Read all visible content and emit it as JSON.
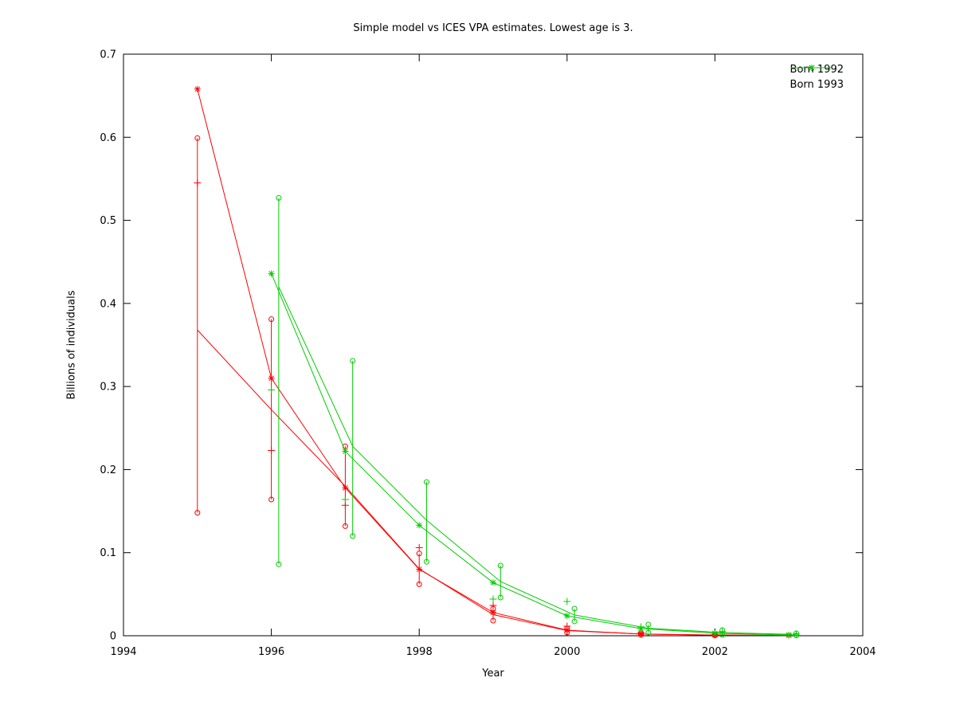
{
  "title": "Simple model vs ICES VPA estimates. Lowest age is 3.",
  "axes": {
    "x": {
      "label": "Year",
      "min": 1994,
      "max": 2004,
      "ticks": [
        {
          "v": 1994,
          "label": "1994"
        },
        {
          "v": 1996,
          "label": "1996"
        },
        {
          "v": 1998,
          "label": "1998"
        },
        {
          "v": 2000,
          "label": "2000"
        },
        {
          "v": 2002,
          "label": "2002"
        },
        {
          "v": 2004,
          "label": "2004"
        }
      ]
    },
    "y": {
      "label": "Billions of individuals",
      "min": 0,
      "max": 0.7,
      "ticks": [
        {
          "v": 0.0,
          "label": "0"
        },
        {
          "v": 0.1,
          "label": "0.1"
        },
        {
          "v": 0.2,
          "label": "0.2"
        },
        {
          "v": 0.3,
          "label": "0.3"
        },
        {
          "v": 0.4,
          "label": "0.4"
        },
        {
          "v": 0.5,
          "label": "0.5"
        },
        {
          "v": 0.6,
          "label": "0.6"
        },
        {
          "v": 0.7,
          "label": "0.7"
        }
      ]
    }
  },
  "legend": {
    "items": [
      {
        "label": "Born 1992",
        "color": "#ff0000",
        "marker": "asterisk"
      },
      {
        "label": "Born 1993",
        "color": "#00cc00",
        "marker": "asterisk"
      }
    ]
  },
  "colors": {
    "axis": "#000000",
    "background": "#ffffff",
    "red_series": "#ff0000",
    "green_series": "#00cc00"
  },
  "chart_data": {
    "type": "line",
    "title": "Simple model vs ICES VPA estimates. Lowest age is 3.",
    "xlabel": "Year",
    "ylabel": "Billions of individuals",
    "xlim": [
      1994,
      2004
    ],
    "ylim": [
      0,
      0.7
    ],
    "grid": false,
    "legend_position": "top-right-inside",
    "series": [
      {
        "name": "Born 1992",
        "color": "#ff0000",
        "marker": "asterisk",
        "model_line": {
          "x": [
            1995,
            1996,
            1997,
            1998,
            1999,
            2000,
            2001,
            2002,
            2003
          ],
          "y": [
            0.658,
            0.31,
            0.178,
            0.08,
            0.028,
            0.0067,
            0.002,
            0.0008,
            0.0004
          ]
        },
        "vpa_line": {
          "x": [
            1995,
            1996,
            1997,
            1998,
            1999,
            2000,
            2001,
            2002,
            2003
          ],
          "y": [
            0.368,
            0.272,
            0.18,
            0.0805,
            0.0254,
            0.0062,
            0.002,
            0.0009,
            0.0004
          ]
        },
        "errorbars": [
          {
            "x": 1995,
            "high": 0.599,
            "low": 0.148
          },
          {
            "x": 1996,
            "high": 0.381,
            "low": 0.164
          },
          {
            "x": 1997,
            "high": 0.228,
            "low": 0.132
          },
          {
            "x": 1998,
            "high": 0.099,
            "low": 0.062
          },
          {
            "x": 1999,
            "high": 0.0326,
            "low": 0.0182
          },
          {
            "x": 2000,
            "high": 0.0086,
            "low": 0.0038
          },
          {
            "x": 2001,
            "high": 0.003,
            "low": 0.001
          },
          {
            "x": 2002,
            "high": 0.0015,
            "low": 0.0004
          }
        ],
        "plus_points": [
          {
            "x": 1995,
            "y": 0.545
          },
          {
            "x": 1996,
            "y": 0.223
          },
          {
            "x": 1997,
            "y": 0.157
          },
          {
            "x": 1998,
            "y": 0.106
          },
          {
            "x": 1999,
            "y": 0.0364
          },
          {
            "x": 2000,
            "y": 0.0115
          },
          {
            "x": 2001,
            "y": 0.0038
          },
          {
            "x": 2002,
            "y": 0.0012
          }
        ]
      },
      {
        "name": "Born 1993",
        "color": "#00cc00",
        "marker": "asterisk",
        "model_line": {
          "x": [
            1996,
            1997,
            1998,
            1999,
            2000,
            2001,
            2002,
            2003
          ],
          "y": [
            0.436,
            0.222,
            0.133,
            0.064,
            0.024,
            0.0086,
            0.003,
            0.001
          ]
        },
        "vpa_line": {
          "x": [
            1996.1,
            1997.1,
            1998.1,
            1999.1,
            2000.1,
            2001.1,
            2002.1,
            2003.1
          ],
          "y": [
            0.42,
            0.228,
            0.139,
            0.0652,
            0.025,
            0.009,
            0.0038,
            0.0015
          ]
        },
        "errorbars": [
          {
            "x": 1996.1,
            "high": 0.527,
            "low": 0.086
          },
          {
            "x": 1997.1,
            "high": 0.331,
            "low": 0.12
          },
          {
            "x": 1998.1,
            "high": 0.185,
            "low": 0.089
          },
          {
            "x": 1999.1,
            "high": 0.0844,
            "low": 0.046
          },
          {
            "x": 2000.1,
            "high": 0.0326,
            "low": 0.0173
          },
          {
            "x": 2001.1,
            "high": 0.0134,
            "low": 0.0038
          },
          {
            "x": 2002.1,
            "high": 0.0067,
            "low": 0.001
          },
          {
            "x": 2003.1,
            "high": 0.0029,
            "low": 0.0002
          }
        ],
        "plus_points": [
          {
            "x": 1996,
            "y": 0.296
          },
          {
            "x": 1997,
            "y": 0.164
          },
          {
            "x": 1999,
            "y": 0.0441
          },
          {
            "x": 2000,
            "y": 0.0412
          },
          {
            "x": 2001,
            "y": 0.0105
          },
          {
            "x": 2002.1,
            "y": 0.005
          },
          {
            "x": 2003.1,
            "y": 0.002
          }
        ]
      }
    ]
  }
}
